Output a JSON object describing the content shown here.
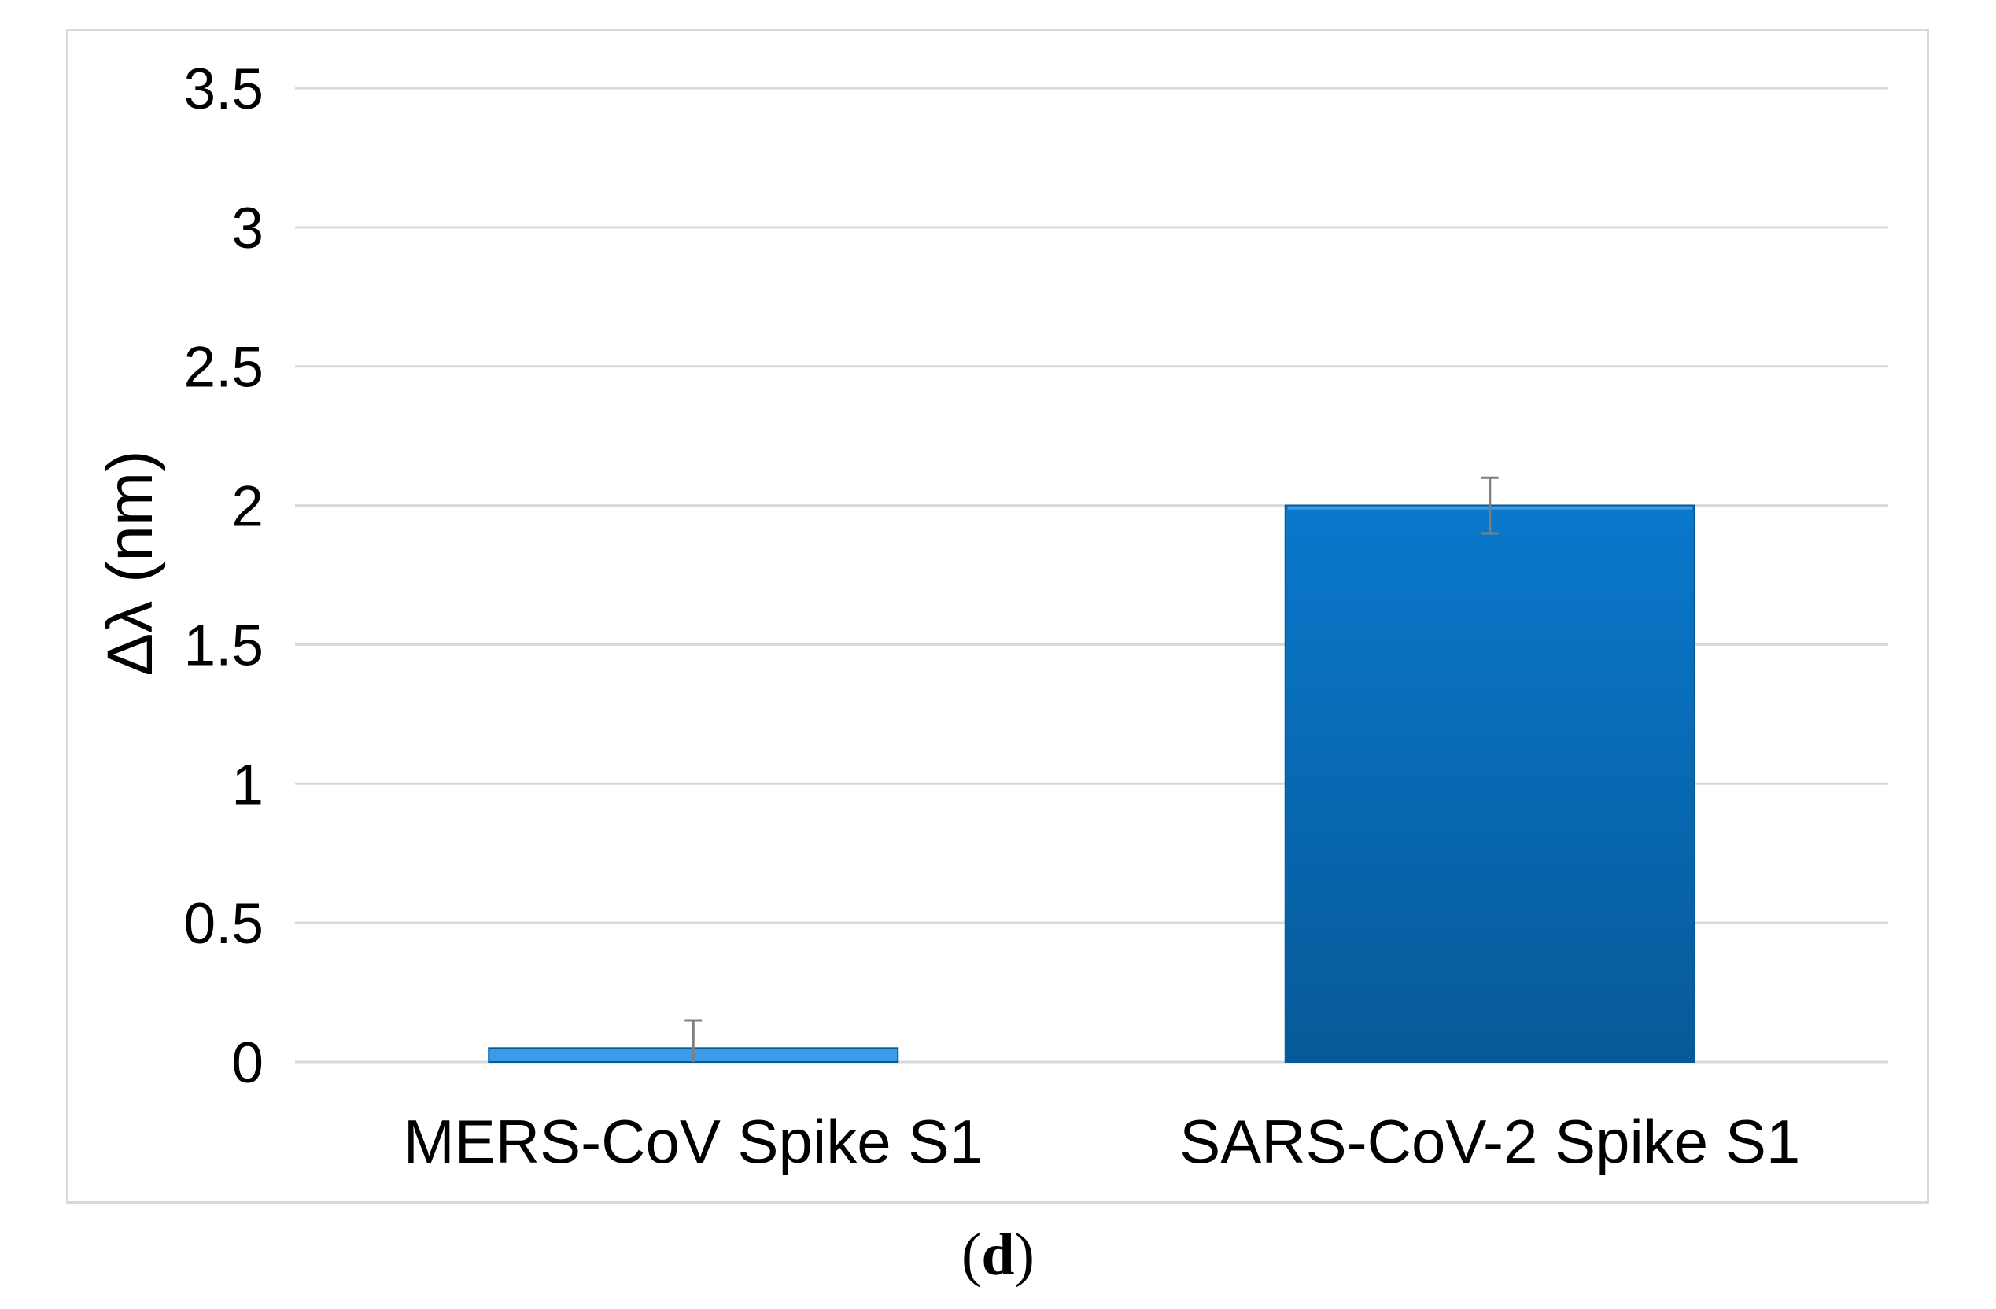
{
  "chart_data": {
    "type": "bar",
    "categories": [
      "MERS-CoV Spike S1",
      "SARS-CoV-2 Spike S1"
    ],
    "values": [
      0.05,
      2.0
    ],
    "error": [
      0.1,
      0.1
    ],
    "ylabel": "Δλ (nm)",
    "xlabel": "",
    "ylim": [
      0,
      3.5
    ],
    "yticks": [
      "0",
      "0.5",
      "1",
      "1.5",
      "2",
      "2.5",
      "3",
      "3.5"
    ],
    "grid": true,
    "bar_color": "#0a78cc",
    "bar_color_dark": "#075a98",
    "bar_color_light": "#3a9be8",
    "grid_color": "#d9d9d9",
    "error_color": "#7f7f7f"
  },
  "panel_label": {
    "open": "(",
    "letter": "d",
    "close": ")"
  }
}
